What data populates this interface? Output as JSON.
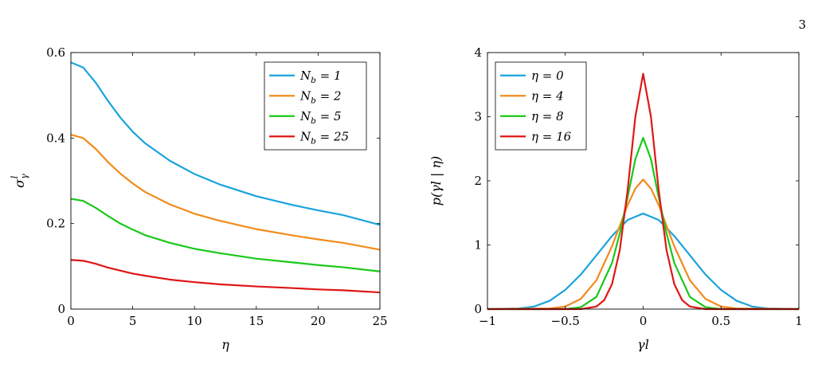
{
  "page_number": "3",
  "colors": {
    "blue": "#1aa3dd",
    "orange": "#f28b1c",
    "green": "#19c919",
    "red": "#e01616"
  },
  "chart_data": [
    {
      "type": "line",
      "xlabel": "η",
      "ylabel": "σ_γ^l",
      "xlim": [
        0,
        25
      ],
      "ylim": [
        0,
        0.6
      ],
      "xticks": [
        "0",
        "5",
        "10",
        "15",
        "20",
        "25"
      ],
      "yticks": [
        "0",
        "0.2",
        "0.4",
        "0.6"
      ],
      "xtick_values": [
        0,
        5,
        10,
        15,
        20,
        25
      ],
      "ytick_values": [
        0,
        0.2,
        0.4,
        0.6
      ],
      "grid": false,
      "legend_position": "top-right",
      "series": [
        {
          "name": "N_b = 1",
          "color": "#1aa3dd",
          "x": [
            0,
            1,
            2,
            3,
            4,
            5,
            6,
            8,
            10,
            12,
            15,
            18,
            20,
            22,
            25
          ],
          "y": [
            0.577,
            0.565,
            0.53,
            0.487,
            0.448,
            0.415,
            0.388,
            0.347,
            0.316,
            0.292,
            0.264,
            0.243,
            0.231,
            0.22,
            0.197
          ]
        },
        {
          "name": "N_b = 2",
          "color": "#f28b1c",
          "x": [
            0,
            1,
            2,
            3,
            4,
            5,
            6,
            8,
            10,
            12,
            15,
            18,
            20,
            22,
            25
          ],
          "y": [
            0.408,
            0.4,
            0.375,
            0.344,
            0.317,
            0.294,
            0.274,
            0.245,
            0.223,
            0.207,
            0.187,
            0.172,
            0.163,
            0.155,
            0.139
          ]
        },
        {
          "name": "N_b = 5",
          "color": "#19c919",
          "x": [
            0,
            1,
            2,
            3,
            4,
            5,
            6,
            8,
            10,
            12,
            15,
            18,
            20,
            22,
            25
          ],
          "y": [
            0.258,
            0.253,
            0.237,
            0.218,
            0.2,
            0.186,
            0.173,
            0.155,
            0.141,
            0.131,
            0.118,
            0.109,
            0.103,
            0.098,
            0.088
          ]
        },
        {
          "name": "N_b = 25",
          "color": "#e01616",
          "x": [
            0,
            1,
            2,
            3,
            4,
            5,
            6,
            8,
            10,
            12,
            15,
            18,
            20,
            22,
            25
          ],
          "y": [
            0.115,
            0.113,
            0.106,
            0.097,
            0.09,
            0.083,
            0.078,
            0.069,
            0.063,
            0.058,
            0.053,
            0.049,
            0.046,
            0.044,
            0.039
          ]
        }
      ]
    },
    {
      "type": "line",
      "xlabel": "γl",
      "ylabel": "p(γl | η)",
      "xlim": [
        -1,
        1
      ],
      "ylim": [
        0,
        4
      ],
      "xticks": [
        "−1",
        "−0.5",
        "0",
        "0.5",
        "1"
      ],
      "yticks": [
        "0",
        "1",
        "2",
        "3",
        "4"
      ],
      "xtick_values": [
        -1,
        -0.5,
        0,
        0.5,
        1
      ],
      "ytick_values": [
        0,
        1,
        2,
        3,
        4
      ],
      "grid": false,
      "legend_position": "top-left",
      "series": [
        {
          "name": "η = 0",
          "color": "#1aa3dd",
          "x": [
            -1,
            -0.8,
            -0.7,
            -0.6,
            -0.5,
            -0.4,
            -0.3,
            -0.2,
            -0.1,
            0,
            0.1,
            0.2,
            0.3,
            0.4,
            0.5,
            0.6,
            0.7,
            0.8,
            1
          ],
          "y": [
            0,
            0.01,
            0.04,
            0.13,
            0.3,
            0.54,
            0.84,
            1.14,
            1.39,
            1.49,
            1.39,
            1.14,
            0.84,
            0.54,
            0.3,
            0.13,
            0.04,
            0.01,
            0
          ]
        },
        {
          "name": "η = 4",
          "color": "#f28b1c",
          "x": [
            -1,
            -0.6,
            -0.5,
            -0.4,
            -0.3,
            -0.2,
            -0.1,
            -0.05,
            0,
            0.05,
            0.1,
            0.2,
            0.3,
            0.4,
            0.5,
            0.6,
            1
          ],
          "y": [
            0,
            0.01,
            0.04,
            0.16,
            0.45,
            0.98,
            1.62,
            1.88,
            2.02,
            1.88,
            1.62,
            0.98,
            0.45,
            0.16,
            0.04,
            0.01,
            0
          ]
        },
        {
          "name": "η = 8",
          "color": "#19c919",
          "x": [
            -1,
            -0.5,
            -0.4,
            -0.3,
            -0.2,
            -0.15,
            -0.1,
            -0.05,
            0,
            0.05,
            0.1,
            0.15,
            0.2,
            0.3,
            0.4,
            0.5,
            1
          ],
          "y": [
            0,
            0.0,
            0.03,
            0.19,
            0.72,
            1.18,
            1.74,
            2.34,
            2.67,
            2.34,
            1.74,
            1.18,
            0.72,
            0.19,
            0.03,
            0.0,
            0
          ]
        },
        {
          "name": "η = 16",
          "color": "#e01616",
          "x": [
            -1,
            -0.4,
            -0.3,
            -0.25,
            -0.2,
            -0.15,
            -0.1,
            -0.05,
            0,
            0.05,
            0.1,
            0.15,
            0.2,
            0.25,
            0.3,
            0.4,
            1
          ],
          "y": [
            0,
            0.0,
            0.04,
            0.14,
            0.39,
            0.92,
            1.85,
            3.0,
            3.67,
            3.0,
            1.85,
            0.92,
            0.39,
            0.14,
            0.04,
            0.0,
            0
          ]
        }
      ]
    }
  ]
}
